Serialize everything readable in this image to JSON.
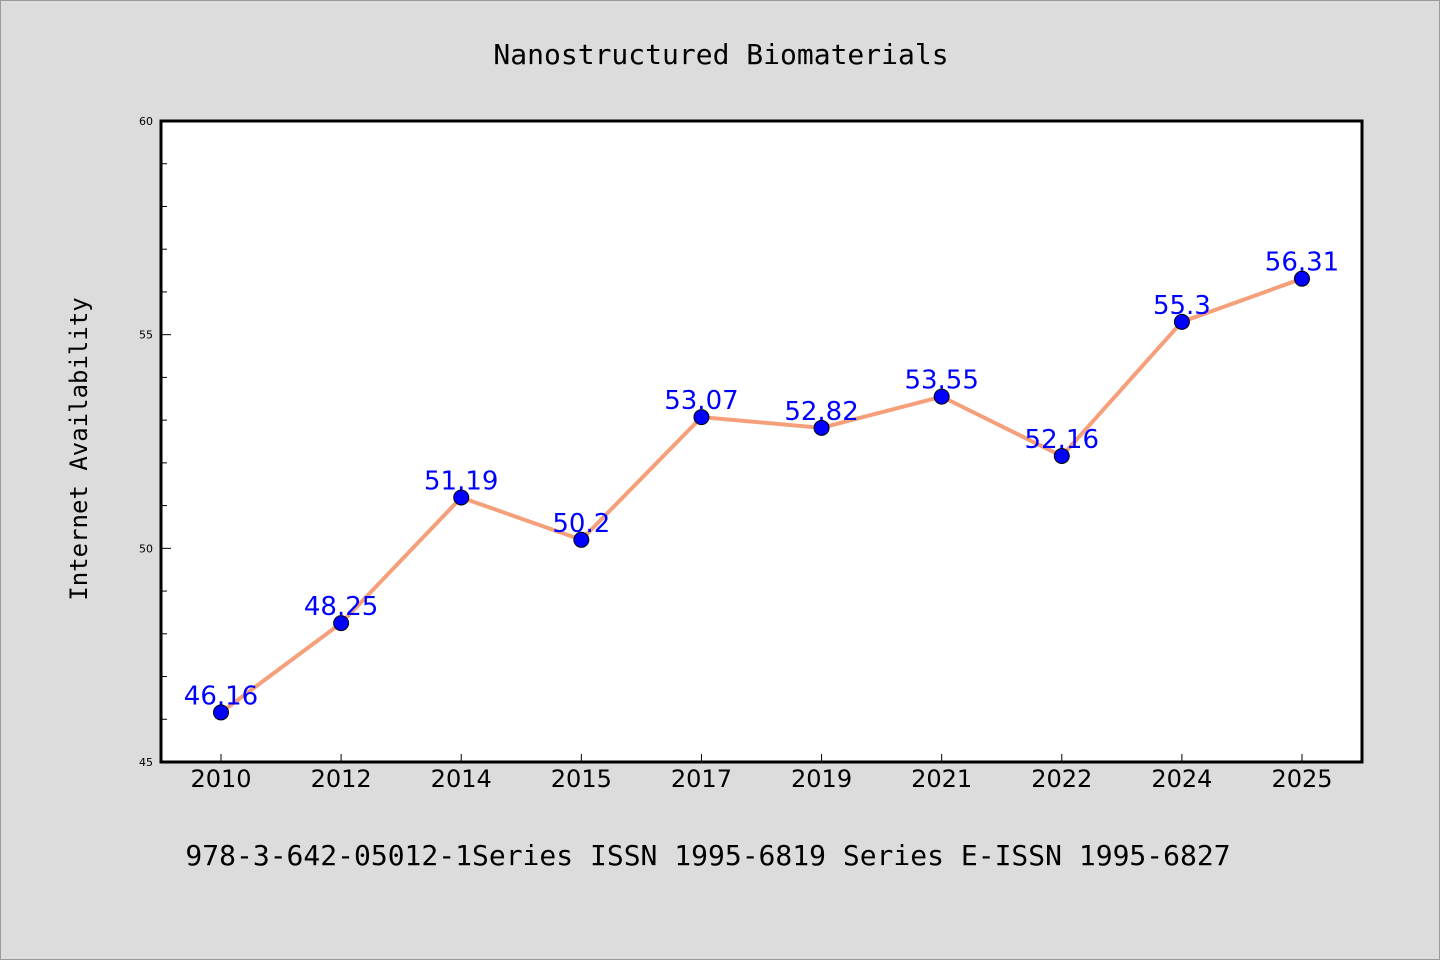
{
  "chart_data": {
    "type": "line",
    "title": "Nanostructured Biomaterials",
    "subtitle": "978-3-642-05012-1Series ISSN 1995-6819 Series E-ISSN 1995-6827",
    "xlabel": "",
    "ylabel": "Internet Availability",
    "categories": [
      "2010",
      "2012",
      "2014",
      "2015",
      "2017",
      "2019",
      "2021",
      "2022",
      "2024",
      "2025"
    ],
    "series": [
      {
        "values": [
          46.16,
          48.25,
          51.19,
          50.2,
          53.07,
          52.82,
          53.55,
          52.16,
          55.3,
          56.31
        ],
        "labels": [
          "46.16",
          "48.25",
          "51.19",
          "50.2",
          "53.07",
          "52.82",
          "53.55",
          "52.16",
          "55.3",
          "56.31"
        ]
      }
    ],
    "ylim": [
      45,
      60
    ],
    "yticks": [
      "45",
      "50",
      "55",
      "60"
    ],
    "grid": false,
    "legend": "none",
    "colors": {
      "line": "#f5a07a",
      "marker": "#0000ff",
      "data_label": "#0000ff",
      "plot_bg": "#ffffff",
      "page_bg": "#dcdcdc",
      "axis": "#000000"
    }
  }
}
